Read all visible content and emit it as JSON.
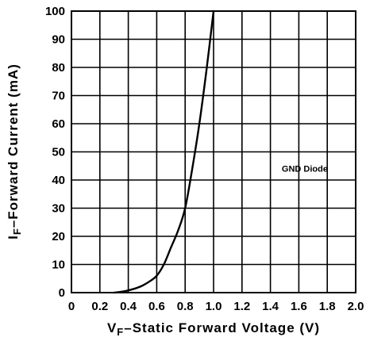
{
  "chart_data": {
    "type": "line",
    "title": "",
    "xlabel": {
      "prefix": "V",
      "subscript": "F",
      "text": "–Static Forward Voltage (V)"
    },
    "ylabel": {
      "prefix": "I",
      "subscript": "F",
      "text": "–Forward Current (mA)"
    },
    "xlim": [
      0,
      2.0
    ],
    "ylim": [
      0,
      100
    ],
    "x_ticks": [
      0,
      0.2,
      0.4,
      0.6,
      0.8,
      1.0,
      1.2,
      1.4,
      1.6,
      1.8,
      2.0
    ],
    "x_tick_labels": [
      "0",
      "0.2",
      "0.4",
      "0.6",
      "0.8",
      "1.0",
      "1.2",
      "1.4",
      "1.6",
      "1.8",
      "2.0"
    ],
    "y_ticks": [
      0,
      10,
      20,
      30,
      40,
      50,
      60,
      70,
      80,
      90,
      100
    ],
    "y_tick_labels": [
      "0",
      "10",
      "20",
      "30",
      "40",
      "50",
      "60",
      "70",
      "80",
      "90",
      "100"
    ],
    "grid": true,
    "legend": "none",
    "line_color": "#000000",
    "annotations": [
      {
        "text": "GND Diode",
        "x": 1.48,
        "y": 43
      }
    ],
    "series": [
      {
        "x": [
          0.3,
          0.35,
          0.4,
          0.45,
          0.5,
          0.55,
          0.6,
          0.65,
          0.7,
          0.75,
          0.8,
          0.85,
          0.9,
          0.95,
          1.0
        ],
        "y": [
          0,
          0.3,
          0.8,
          1.5,
          2.5,
          4,
          6,
          10,
          16,
          22,
          30,
          44,
          60,
          79,
          100
        ]
      }
    ]
  }
}
